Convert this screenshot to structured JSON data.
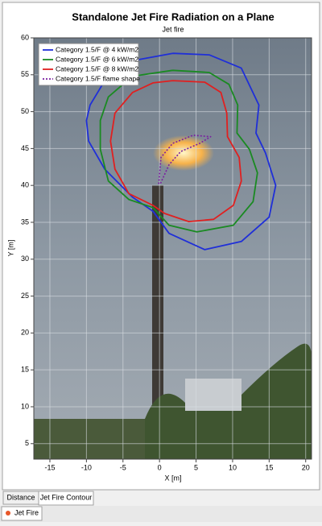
{
  "chart_data": {
    "type": "line",
    "title": "Standalone Jet Fire Radiation on a Plane",
    "subtitle": "Jet fire",
    "x_label": "X [m]",
    "y_label": "Y [m]",
    "xlim": [
      -17.2,
      20.8
    ],
    "ylim": [
      2.9,
      60
    ],
    "xticks": [
      -15,
      -10,
      -5,
      0,
      5,
      10,
      15,
      20
    ],
    "yticks": [
      5,
      10,
      15,
      20,
      25,
      30,
      35,
      40,
      45,
      50,
      55,
      60
    ],
    "grid": true,
    "legend": "top-left",
    "series": [
      {
        "name": "Category 1.5/F @ 4 kW/m2",
        "color": "#1f2fd8",
        "dash": false,
        "x": [
          1.8,
          6.8,
          11.2,
          13.6,
          13.2,
          14.5,
          15.9,
          15.0,
          11.2,
          6.2,
          1.3,
          -0.9,
          -3.7,
          -7.5,
          -9.7,
          -10.0,
          -9.5,
          -7.5,
          -3.7,
          1.8
        ],
        "values": [
          57.9,
          57.7,
          55.9,
          50.9,
          47.1,
          44.4,
          40.0,
          35.7,
          32.4,
          31.3,
          33.5,
          36.5,
          38.4,
          42.2,
          46.0,
          48.8,
          50.9,
          54.2,
          56.9,
          57.9
        ]
      },
      {
        "name": "Category 1.5/F @ 6 kW/m2",
        "color": "#1a8a22",
        "dash": false,
        "x": [
          1.8,
          6.8,
          9.5,
          10.7,
          10.6,
          12.3,
          13.4,
          12.8,
          10.1,
          5.1,
          1.3,
          -0.9,
          -4.2,
          -7.0,
          -8.1,
          -8.1,
          -7.0,
          -3.7,
          1.8
        ],
        "values": [
          55.6,
          55.3,
          53.7,
          50.9,
          47.1,
          44.9,
          41.7,
          37.8,
          34.6,
          33.7,
          34.6,
          37.0,
          38.1,
          40.6,
          44.9,
          48.8,
          52.0,
          54.8,
          55.6
        ]
      },
      {
        "name": "Category 1.5/F @ 8 kW/m2",
        "color": "#e02020",
        "dash": false,
        "x": [
          1.8,
          6.2,
          8.4,
          9.2,
          9.3,
          10.9,
          11.2,
          10.1,
          7.4,
          4.0,
          0.7,
          -0.9,
          -4.2,
          -6.1,
          -6.7,
          -6.1,
          -3.7,
          -0.9,
          1.8
        ],
        "values": [
          54.2,
          54.0,
          52.6,
          49.8,
          46.6,
          43.8,
          40.6,
          37.3,
          35.4,
          35.1,
          36.2,
          37.3,
          38.9,
          42.2,
          46.0,
          49.8,
          52.6,
          53.9,
          54.2
        ]
      },
      {
        "name": "Category 1.5/F flame shape",
        "color": "#7a1fa0",
        "dash": true,
        "x": [
          -0.1,
          0.2,
          1.8,
          4.6,
          7.0,
          5.5,
          2.9,
          1.3,
          0.1
        ],
        "values": [
          40.2,
          43.8,
          45.7,
          46.8,
          46.6,
          45.7,
          44.6,
          42.8,
          40.2
        ]
      }
    ]
  },
  "ui": {
    "tabs": [
      "Distance",
      "Jet Fire Contour"
    ],
    "bottom_tab": "Jet Fire"
  }
}
